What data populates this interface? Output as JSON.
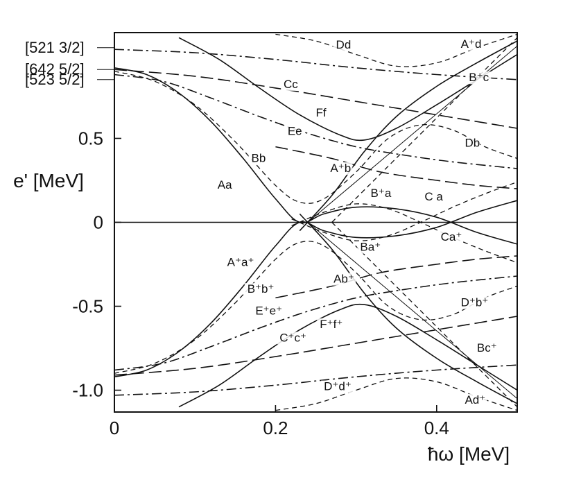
{
  "chart_data": {
    "type": "line",
    "title": "",
    "xlabel": "ħω [MeV]",
    "ylabel": "e' [MeV]",
    "xlim": [
      0,
      0.5
    ],
    "ylim": [
      -1.13,
      1.13
    ],
    "grid": false,
    "legend": "none",
    "x_ticks": [
      {
        "value": 0,
        "label": "0"
      },
      {
        "value": 0.2,
        "label": "0.2"
      },
      {
        "value": 0.4,
        "label": "0.4"
      }
    ],
    "y_ticks": [
      {
        "value": 0.5,
        "label": "0.5"
      },
      {
        "value": 0,
        "label": "0"
      },
      {
        "value": -0.5,
        "label": "-0.5"
      },
      {
        "value": -1.0,
        "label": "-1.0"
      }
    ],
    "orbital_labels": [
      {
        "text": "[521 3/2]",
        "y": 1.04
      },
      {
        "text": "[642 5/2]",
        "y": 0.91
      },
      {
        "text": "[523 5/2]",
        "y": 0.85
      }
    ],
    "series": [
      {
        "style": "solid",
        "x": [
          0,
          0.04,
          0.08,
          0.12,
          0.16,
          0.2,
          0.23,
          0.26,
          0.3,
          0.35,
          0.4,
          0.45,
          0.5
        ],
        "y": [
          0.92,
          0.88,
          0.77,
          0.6,
          0.38,
          0.14,
          0,
          0.05,
          0.09,
          0.08,
          0.03,
          -0.06,
          -0.13
        ]
      },
      {
        "style": "solid",
        "x": [
          0,
          0.04,
          0.08,
          0.12,
          0.16,
          0.2,
          0.23,
          0.26,
          0.3,
          0.35,
          0.4,
          0.45,
          0.5
        ],
        "y": [
          -0.92,
          -0.88,
          -0.77,
          -0.6,
          -0.38,
          -0.14,
          0,
          -0.05,
          -0.09,
          -0.08,
          -0.03,
          0.06,
          0.13
        ]
      },
      {
        "style": "solid",
        "x": [
          0.08,
          0.13,
          0.18,
          0.23,
          0.28,
          0.31,
          0.35,
          0.4,
          0.45,
          0.5
        ],
        "y": [
          1.1,
          0.97,
          0.8,
          0.64,
          0.52,
          0.49,
          0.56,
          0.7,
          0.85,
          1.0
        ]
      },
      {
        "style": "solid",
        "x": [
          0.08,
          0.13,
          0.18,
          0.23,
          0.28,
          0.31,
          0.35,
          0.4,
          0.45,
          0.5
        ],
        "y": [
          -1.1,
          -0.97,
          -0.8,
          -0.64,
          -0.52,
          -0.49,
          -0.56,
          -0.7,
          -0.85,
          -1.0
        ]
      },
      {
        "style": "solid",
        "x": [
          0.23,
          0.27,
          0.31,
          0.35,
          0.4,
          0.45,
          0.5
        ],
        "y": [
          -0.05,
          0.16,
          0.42,
          0.63,
          0.81,
          0.95,
          1.08
        ]
      },
      {
        "style": "solid",
        "x": [
          0.23,
          0.27,
          0.31,
          0.35,
          0.4,
          0.45,
          0.5
        ],
        "y": [
          0.05,
          -0.16,
          -0.42,
          -0.63,
          -0.81,
          -0.95,
          -1.08
        ]
      },
      {
        "style": "solid",
        "x": [
          0,
          0.5
        ],
        "y": [
          0,
          0
        ]
      },
      {
        "style": "thin",
        "x": [
          0.24,
          0.5
        ],
        "y": [
          0,
          1.05
        ]
      },
      {
        "style": "thin",
        "x": [
          0.24,
          0.5
        ],
        "y": [
          0,
          -1.05
        ]
      },
      {
        "style": "dashed",
        "x": [
          0.2,
          0.25,
          0.3,
          0.35,
          0.4,
          0.45,
          0.5
        ],
        "y": [
          1.12,
          1.08,
          1.0,
          0.93,
          0.95,
          1.04,
          1.12
        ]
      },
      {
        "style": "dashed",
        "x": [
          0.2,
          0.25,
          0.3,
          0.35,
          0.4,
          0.45,
          0.5
        ],
        "y": [
          -1.12,
          -1.08,
          -1.0,
          -0.93,
          -0.95,
          -1.04,
          -1.12
        ]
      },
      {
        "style": "dashed",
        "x": [
          0,
          0.05,
          0.1,
          0.15,
          0.2,
          0.23,
          0.26,
          0.3,
          0.34,
          0.38,
          0.42,
          0.46,
          0.5
        ],
        "y": [
          0.9,
          0.84,
          0.7,
          0.48,
          0.22,
          0.12,
          0.14,
          0.3,
          0.5,
          0.58,
          0.55,
          0.45,
          0.38
        ]
      },
      {
        "style": "dashed",
        "x": [
          0,
          0.05,
          0.1,
          0.15,
          0.2,
          0.23,
          0.26,
          0.3,
          0.34,
          0.38,
          0.42,
          0.46,
          0.5
        ],
        "y": [
          -0.9,
          -0.84,
          -0.7,
          -0.48,
          -0.22,
          -0.12,
          -0.14,
          -0.3,
          -0.5,
          -0.58,
          -0.55,
          -0.45,
          -0.38
        ]
      },
      {
        "style": "dashed",
        "x": [
          0.22,
          0.26,
          0.3,
          0.34,
          0.38,
          0.42,
          0.46,
          0.5
        ],
        "y": [
          0.02,
          -0.06,
          -0.11,
          -0.08,
          0,
          0.09,
          0.17,
          0.24
        ]
      },
      {
        "style": "dashed",
        "x": [
          0.22,
          0.26,
          0.3,
          0.34,
          0.38,
          0.42,
          0.46,
          0.5
        ],
        "y": [
          -0.02,
          0.06,
          0.11,
          0.08,
          0,
          -0.09,
          -0.17,
          -0.24
        ]
      },
      {
        "style": "dashed",
        "x": [
          0.27,
          0.5
        ],
        "y": [
          0,
          1.1
        ]
      },
      {
        "style": "dashed",
        "x": [
          0.27,
          0.5
        ],
        "y": [
          0,
          -1.1
        ]
      },
      {
        "style": "dashdot",
        "x": [
          0,
          0.1,
          0.2,
          0.3,
          0.4,
          0.5
        ],
        "y": [
          1.03,
          1.01,
          0.97,
          0.92,
          0.88,
          0.85
        ]
      },
      {
        "style": "dashdot",
        "x": [
          0,
          0.1,
          0.2,
          0.3,
          0.4,
          0.5
        ],
        "y": [
          -1.03,
          -1.01,
          -0.97,
          -0.92,
          -0.88,
          -0.85
        ]
      },
      {
        "style": "dashdot",
        "x": [
          0,
          0.06,
          0.12,
          0.18,
          0.24,
          0.3,
          0.36,
          0.42,
          0.5
        ],
        "y": [
          0.88,
          0.84,
          0.74,
          0.63,
          0.53,
          0.45,
          0.4,
          0.36,
          0.32
        ]
      },
      {
        "style": "dashdot",
        "x": [
          0,
          0.06,
          0.12,
          0.18,
          0.24,
          0.3,
          0.36,
          0.42,
          0.5
        ],
        "y": [
          -0.88,
          -0.84,
          -0.74,
          -0.63,
          -0.53,
          -0.45,
          -0.4,
          -0.36,
          -0.32
        ]
      },
      {
        "style": "longdash",
        "x": [
          0,
          0.1,
          0.2,
          0.3,
          0.4,
          0.5
        ],
        "y": [
          0.91,
          0.87,
          0.8,
          0.72,
          0.64,
          0.56
        ]
      },
      {
        "style": "longdash",
        "x": [
          0,
          0.1,
          0.2,
          0.3,
          0.4,
          0.5
        ],
        "y": [
          -0.91,
          -0.87,
          -0.8,
          -0.72,
          -0.64,
          -0.56
        ]
      },
      {
        "style": "longdash",
        "x": [
          0.2,
          0.27,
          0.33,
          0.4,
          0.45,
          0.5
        ],
        "y": [
          0.45,
          0.38,
          0.3,
          0.25,
          0.22,
          0.2
        ]
      },
      {
        "style": "longdash",
        "x": [
          0.2,
          0.27,
          0.33,
          0.4,
          0.45,
          0.5
        ],
        "y": [
          -0.45,
          -0.38,
          -0.3,
          -0.25,
          -0.22,
          -0.2
        ]
      }
    ],
    "annotations": [
      {
        "text": "Dd",
        "x": 0.275,
        "y": 1.035
      },
      {
        "text": "A⁺d",
        "x": 0.43,
        "y": 1.04
      },
      {
        "text": "B⁺c",
        "x": 0.44,
        "y": 0.84
      },
      {
        "text": "Cc",
        "x": 0.21,
        "y": 0.8
      },
      {
        "text": "Ff",
        "x": 0.25,
        "y": 0.63
      },
      {
        "text": "Ee",
        "x": 0.215,
        "y": 0.52
      },
      {
        "text": "0.5",
        "x": -0.05,
        "y": 0.5
      },
      {
        "text": "Db",
        "x": 0.435,
        "y": 0.45
      },
      {
        "text": "Bb",
        "x": 0.17,
        "y": 0.36
      },
      {
        "text": "A⁺b",
        "x": 0.268,
        "y": 0.3
      },
      {
        "text": "Aa",
        "x": 0.128,
        "y": 0.2
      },
      {
        "text": "B⁺a",
        "x": 0.318,
        "y": 0.15
      },
      {
        "text": "C a",
        "x": 0.385,
        "y": 0.13
      },
      {
        "text": "Ca⁺",
        "x": 0.405,
        "y": -0.11
      },
      {
        "text": "Ba⁺",
        "x": 0.305,
        "y": -0.17
      },
      {
        "text": "A⁺a⁺",
        "x": 0.14,
        "y": -0.26
      },
      {
        "text": "Ab⁺",
        "x": 0.272,
        "y": -0.36
      },
      {
        "text": "B⁺b⁺",
        "x": 0.165,
        "y": -0.42
      },
      {
        "text": "E⁺e⁺",
        "x": 0.175,
        "y": -0.55
      },
      {
        "text": "F⁺f⁺",
        "x": 0.255,
        "y": -0.63
      },
      {
        "text": "D⁺b⁺",
        "x": 0.43,
        "y": -0.5
      },
      {
        "text": "C⁺c⁺",
        "x": 0.205,
        "y": -0.71
      },
      {
        "text": "Bc⁺",
        "x": 0.45,
        "y": -0.77
      },
      {
        "text": "D⁺d⁺",
        "x": 0.26,
        "y": -1.0
      },
      {
        "text": "Ad⁺",
        "x": 0.435,
        "y": -1.08
      }
    ]
  }
}
